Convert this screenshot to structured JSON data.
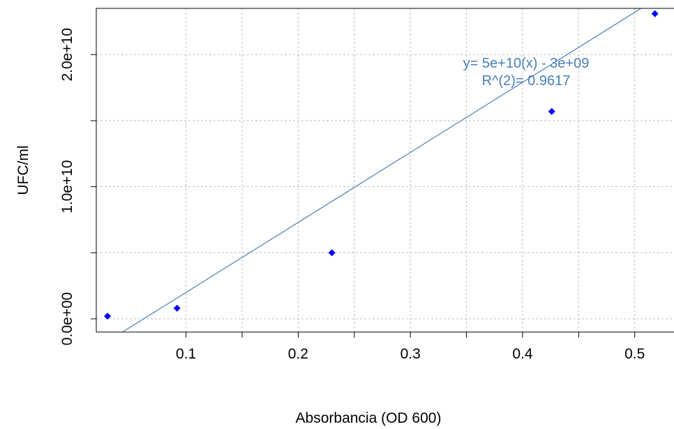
{
  "chart_data": {
    "type": "scatter",
    "title": "",
    "xlabel": "Absorbancia (OD 600)",
    "ylabel": "UFC/ml",
    "xlim": [
      0.02,
      0.535
    ],
    "ylim": [
      -1000000000.0,
      23500000000.0
    ],
    "x_ticks": [
      0.1,
      0.2,
      0.3,
      0.4,
      0.5
    ],
    "x_tick_labels": [
      "0.1",
      "0.2",
      "0.3",
      "0.4",
      "0.5"
    ],
    "y_ticks": [
      0,
      10000000000.0,
      20000000000.0
    ],
    "y_tick_labels": [
      "0.0e+00",
      "1.0e+10",
      "2.0e+10"
    ],
    "y_minor_ticks": [
      5000000000.0,
      15000000000.0
    ],
    "x_minor_ticks": [
      0.15,
      0.25,
      0.35,
      0.45
    ],
    "grid": true,
    "points": [
      {
        "x": 0.03,
        "y": 200000000.0
      },
      {
        "x": 0.092,
        "y": 800000000.0
      },
      {
        "x": 0.23,
        "y": 5000000000.0
      },
      {
        "x": 0.426,
        "y": 15700000000.0
      },
      {
        "x": 0.518,
        "y": 23100000000.0
      }
    ],
    "point_color": "#0000ff",
    "fit_line": {
      "slope": 53000000000.0,
      "intercept": -3300000000.0,
      "color": "#4a7fb8"
    },
    "annotations": [
      "y= 5e+10(x) - 3e+09",
      "R^(2)= 0.9617"
    ]
  }
}
